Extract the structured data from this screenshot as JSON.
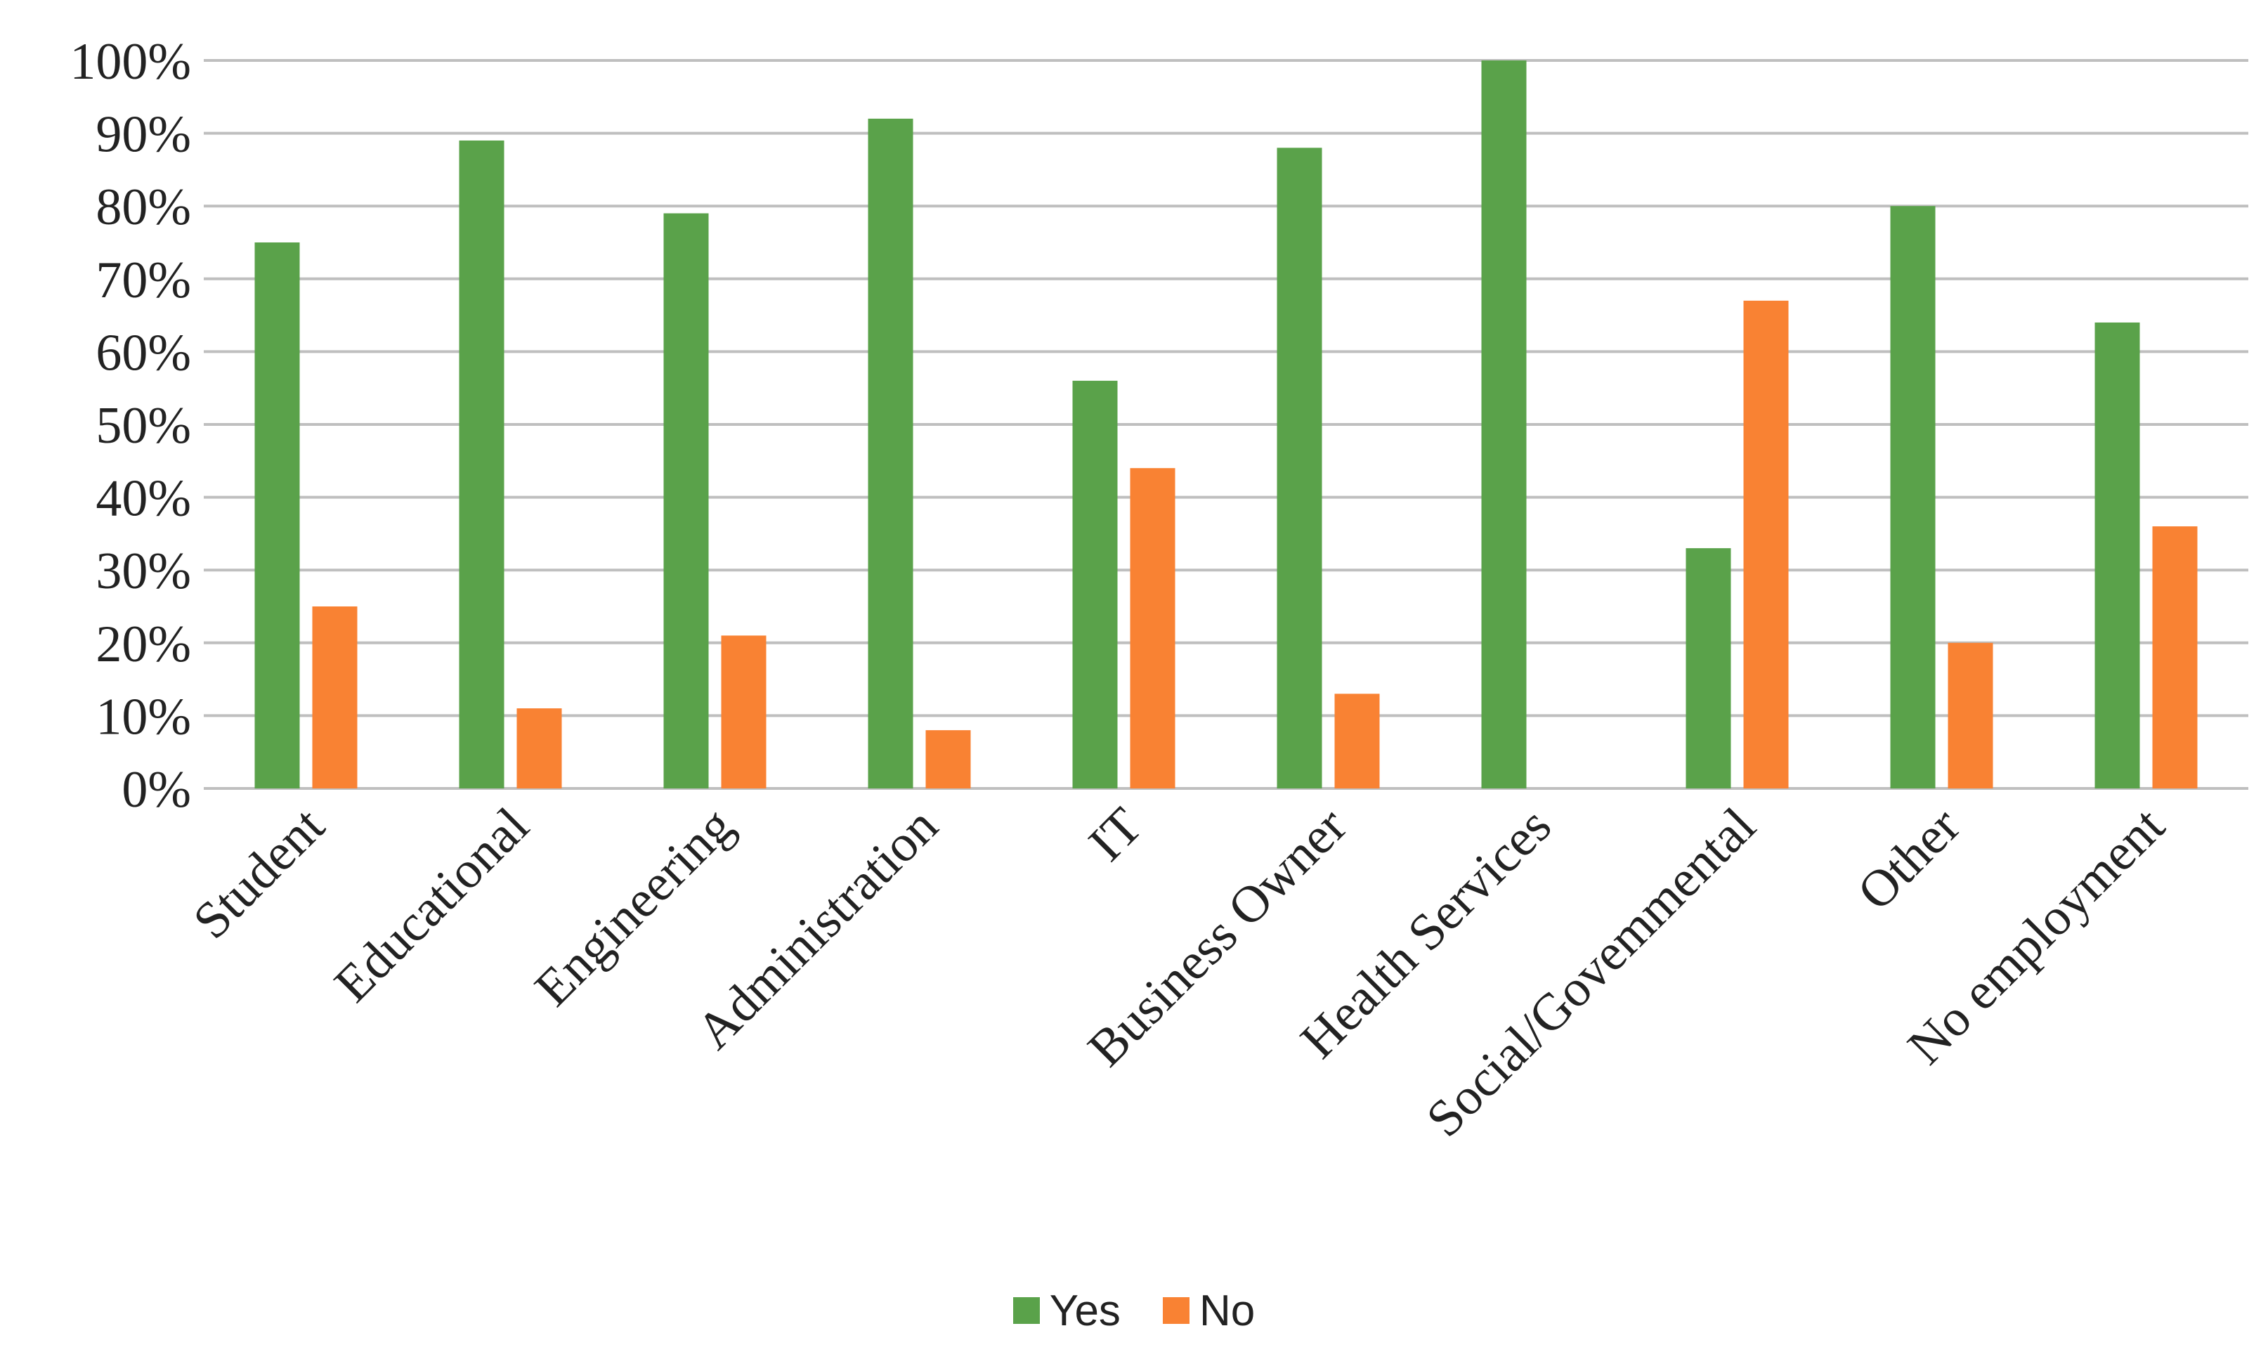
{
  "chart_data": {
    "type": "bar",
    "categories": [
      "Student",
      "Educational",
      "Engineering",
      "Administration",
      "IT",
      "Business Owner",
      "Health Services",
      "Social/Govemmental",
      "Other",
      "No employment"
    ],
    "series": [
      {
        "name": "Yes",
        "color": "#5aa24a",
        "values": [
          75,
          89,
          79,
          92,
          56,
          88,
          100,
          33,
          80,
          64
        ]
      },
      {
        "name": "No",
        "color": "#f98233",
        "values": [
          25,
          11,
          21,
          8,
          44,
          13,
          0,
          67,
          20,
          36
        ]
      }
    ],
    "yticks": [
      "0%",
      "10%",
      "20%",
      "30%",
      "40%",
      "50%",
      "60%",
      "70%",
      "80%",
      "90%",
      "100%"
    ],
    "ylim": [
      0,
      100
    ],
    "grid": true,
    "legend_position": "bottom-center",
    "gridline_color": "#bfbfbf"
  }
}
